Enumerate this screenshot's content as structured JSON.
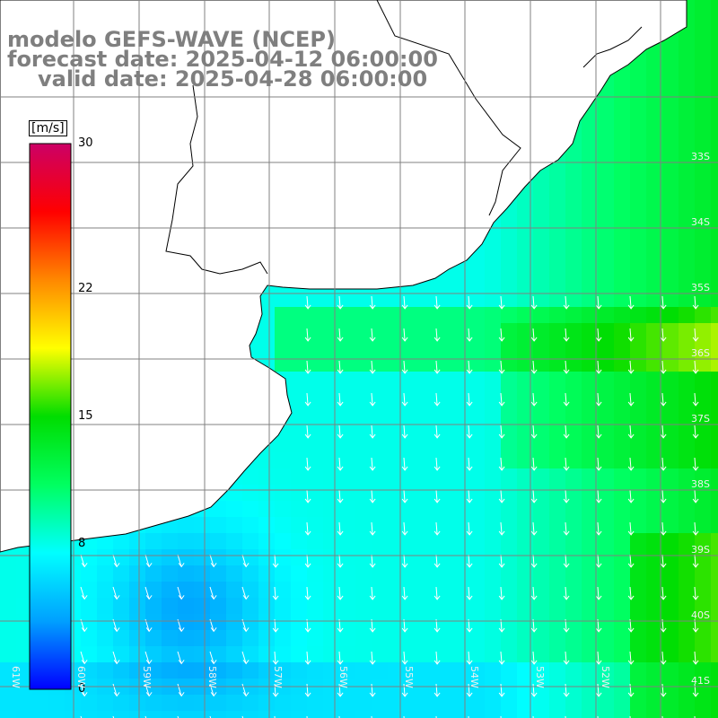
{
  "title": {
    "model": "modelo GEFS-WAVE (NCEP)",
    "forecast": "forecast date: 2025-04-12 06:00:00",
    "valid": "valid date: 2025-04-28 06:00:00"
  },
  "colorbar": {
    "unit": "[m/s]",
    "ticks": [
      {
        "label": "30",
        "value": 30
      },
      {
        "label": "22",
        "value": 22
      },
      {
        "label": "15",
        "value": 15
      },
      {
        "label": "8",
        "value": 8
      },
      {
        "label": "0",
        "value": 0
      }
    ],
    "stops": [
      "#0000ff",
      "#00a0ff",
      "#00ffff",
      "#00ff60",
      "#00dd00",
      "#ffff00",
      "#ff8800",
      "#ff0000",
      "#cc0066"
    ]
  },
  "grid": {
    "lat_labels": [
      "33S",
      "34S",
      "35S",
      "36S",
      "37S",
      "38S",
      "39S",
      "40S",
      "41S"
    ],
    "lon_labels": [
      "61W",
      "60W",
      "59W",
      "58W",
      "57W",
      "56W",
      "55W",
      "54W",
      "53W",
      "52W"
    ]
  },
  "colors": {
    "land": "#ffffff",
    "coast": "#000000",
    "grid": "#808080",
    "title": "#7f7f7f",
    "arrow": "#ffffff"
  }
}
